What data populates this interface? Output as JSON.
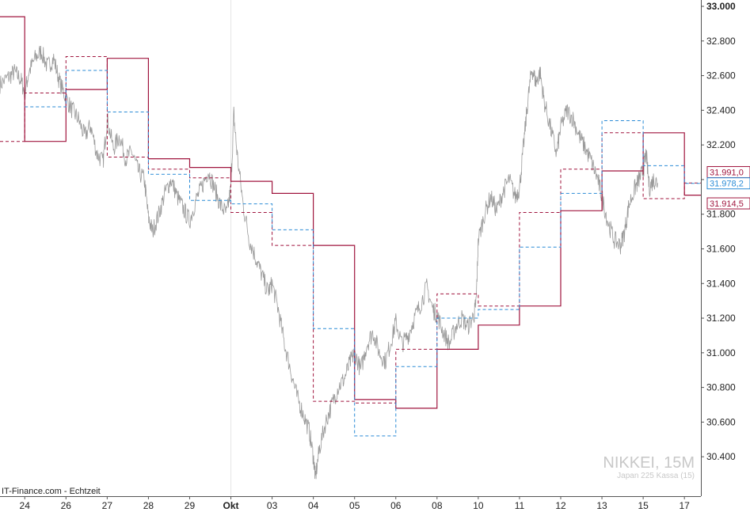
{
  "source_label": "IT-Finance.com - Echtzeit",
  "watermark": {
    "symbol": "NIKKEI, 15M",
    "subtitle": "Japan 225 Kassa (15)"
  },
  "colors": {
    "price_line": "#9a9a9a",
    "weekly_level": "#a0153e",
    "daily_high": "#a0153e",
    "daily_low": "#2a8bd6",
    "grid": "#e6e6e6"
  },
  "chart_data": {
    "type": "line",
    "title": "",
    "ylim": [
      30250,
      33000
    ],
    "y_ticks": [
      "30.400",
      "30.600",
      "30.800",
      "31.000",
      "31.200",
      "31.400",
      "31.600",
      "31.800",
      "32.000",
      "32.200",
      "32.400",
      "32.600",
      "32.800",
      "33.000"
    ],
    "y_tick_values": [
      30400,
      30600,
      30800,
      31000,
      31200,
      31400,
      31600,
      31800,
      32000,
      32200,
      32400,
      32600,
      32800,
      33000
    ],
    "x_ticks": [
      "24",
      "26",
      "27",
      "28",
      "29",
      "Okt",
      "03",
      "04",
      "05",
      "06",
      "08",
      "10",
      "11",
      "12",
      "13",
      "15",
      "17"
    ],
    "x_tick_index": [
      0.05,
      1.05,
      2.05,
      3.05,
      4.05,
      5.05,
      6.05,
      7.05,
      8.05,
      9.05,
      10.05,
      11.05,
      12.05,
      13.05,
      14.05,
      15.05,
      16.05
    ],
    "x_extent": [
      -0.55,
      16.45
    ],
    "grid": "vertical at Okt",
    "price_markers": [
      {
        "label": "31.991,0",
        "value": 31991.0,
        "color": "#a0153e"
      },
      {
        "label": "31.978,2",
        "value": 31978.2,
        "color": "#2a8bd6"
      },
      {
        "label": "31.914,5",
        "value": 31914.5,
        "color": "#a0153e"
      }
    ],
    "price_series": [
      [
        -0.55,
        32550
      ],
      [
        -0.35,
        32590
      ],
      [
        -0.2,
        32620
      ],
      [
        -0.05,
        32580
      ],
      [
        0.05,
        32500
      ],
      [
        0.15,
        32620
      ],
      [
        0.3,
        32700
      ],
      [
        0.45,
        32740
      ],
      [
        0.6,
        32650
      ],
      [
        0.75,
        32700
      ],
      [
        0.9,
        32560
      ],
      [
        1.05,
        32470
      ],
      [
        1.2,
        32400
      ],
      [
        1.35,
        32350
      ],
      [
        1.5,
        32250
      ],
      [
        1.65,
        32310
      ],
      [
        1.8,
        32150
      ],
      [
        1.95,
        32100
      ],
      [
        2.05,
        32350
      ],
      [
        2.2,
        32180
      ],
      [
        2.35,
        32250
      ],
      [
        2.5,
        32120
      ],
      [
        2.65,
        32160
      ],
      [
        2.8,
        32050
      ],
      [
        2.95,
        32000
      ],
      [
        3.05,
        31780
      ],
      [
        3.15,
        31700
      ],
      [
        3.3,
        31800
      ],
      [
        3.45,
        31920
      ],
      [
        3.6,
        32000
      ],
      [
        3.75,
        31900
      ],
      [
        3.9,
        31830
      ],
      [
        4.05,
        31760
      ],
      [
        4.2,
        31880
      ],
      [
        4.35,
        31960
      ],
      [
        4.5,
        32050
      ],
      [
        4.65,
        31950
      ],
      [
        4.8,
        31850
      ],
      [
        4.95,
        31800
      ],
      [
        5.05,
        31950
      ],
      [
        5.12,
        32380
      ],
      [
        5.2,
        32150
      ],
      [
        5.35,
        31850
      ],
      [
        5.5,
        31650
      ],
      [
        5.65,
        31550
      ],
      [
        5.8,
        31450
      ],
      [
        5.95,
        31350
      ],
      [
        6.05,
        31400
      ],
      [
        6.2,
        31250
      ],
      [
        6.35,
        31050
      ],
      [
        6.5,
        30900
      ],
      [
        6.65,
        30750
      ],
      [
        6.8,
        30650
      ],
      [
        6.95,
        30550
      ],
      [
        7.05,
        30400
      ],
      [
        7.1,
        30280
      ],
      [
        7.2,
        30450
      ],
      [
        7.35,
        30600
      ],
      [
        7.5,
        30700
      ],
      [
        7.65,
        30800
      ],
      [
        7.8,
        30850
      ],
      [
        7.95,
        30950
      ],
      [
        8.05,
        31000
      ],
      [
        8.2,
        30900
      ],
      [
        8.35,
        31050
      ],
      [
        8.5,
        31120
      ],
      [
        8.65,
        31000
      ],
      [
        8.8,
        30950
      ],
      [
        8.95,
        31080
      ],
      [
        9.05,
        31180
      ],
      [
        9.2,
        31050
      ],
      [
        9.35,
        31100
      ],
      [
        9.5,
        31200
      ],
      [
        9.65,
        31280
      ],
      [
        9.8,
        31380
      ],
      [
        9.95,
        31250
      ],
      [
        10.05,
        31220
      ],
      [
        10.2,
        31120
      ],
      [
        10.35,
        31050
      ],
      [
        10.5,
        31150
      ],
      [
        10.65,
        31200
      ],
      [
        10.8,
        31150
      ],
      [
        10.95,
        31220
      ],
      [
        11.0,
        31300
      ],
      [
        11.05,
        31650
      ],
      [
        11.2,
        31800
      ],
      [
        11.35,
        31900
      ],
      [
        11.5,
        31820
      ],
      [
        11.65,
        31930
      ],
      [
        11.8,
        32000
      ],
      [
        11.95,
        31900
      ],
      [
        12.05,
        31950
      ],
      [
        12.15,
        32200
      ],
      [
        12.25,
        32450
      ],
      [
        12.35,
        32640
      ],
      [
        12.45,
        32560
      ],
      [
        12.55,
        32620
      ],
      [
        12.65,
        32450
      ],
      [
        12.8,
        32300
      ],
      [
        12.95,
        32150
      ],
      [
        13.05,
        32300
      ],
      [
        13.2,
        32400
      ],
      [
        13.35,
        32350
      ],
      [
        13.5,
        32250
      ],
      [
        13.65,
        32180
      ],
      [
        13.8,
        32100
      ],
      [
        13.95,
        32000
      ],
      [
        14.05,
        31900
      ],
      [
        14.2,
        31750
      ],
      [
        14.35,
        31650
      ],
      [
        14.5,
        31620
      ],
      [
        14.6,
        31700
      ],
      [
        14.7,
        31850
      ],
      [
        14.85,
        31950
      ],
      [
        14.95,
        32000
      ],
      [
        15.05,
        32050
      ],
      [
        15.12,
        32150
      ],
      [
        15.2,
        31950
      ],
      [
        15.3,
        32000
      ],
      [
        15.4,
        31980
      ]
    ],
    "series": [
      {
        "name": "",
        "kind": "weekly",
        "style": "solid",
        "steps": [
          [
            -0.55,
            32940
          ],
          [
            0.05,
            32940
          ],
          [
            0.05,
            32220
          ],
          [
            1.05,
            32220
          ],
          [
            1.05,
            32520
          ],
          [
            2.05,
            32520
          ],
          [
            2.05,
            32700
          ],
          [
            3.05,
            32700
          ],
          [
            3.05,
            32120
          ],
          [
            4.05,
            32120
          ],
          [
            4.05,
            32070
          ],
          [
            5.05,
            32070
          ],
          [
            5.05,
            31990
          ],
          [
            6.05,
            31990
          ],
          [
            6.05,
            31920
          ],
          [
            7.05,
            31920
          ],
          [
            7.05,
            31620
          ],
          [
            8.05,
            31620
          ],
          [
            8.05,
            30730
          ],
          [
            9.05,
            30730
          ],
          [
            9.05,
            30680
          ],
          [
            10.05,
            30680
          ],
          [
            10.05,
            31020
          ],
          [
            11.05,
            31020
          ],
          [
            11.05,
            31160
          ],
          [
            12.05,
            31160
          ],
          [
            12.05,
            31270
          ],
          [
            13.05,
            31270
          ],
          [
            13.05,
            31820
          ],
          [
            14.05,
            31820
          ],
          [
            14.05,
            32050
          ],
          [
            15.05,
            32050
          ],
          [
            15.05,
            32270
          ],
          [
            16.05,
            32270
          ],
          [
            16.05,
            31910
          ],
          [
            16.45,
            31910
          ]
        ]
      },
      {
        "name": "",
        "kind": "daily_high",
        "style": "dashed",
        "steps": [
          [
            -0.55,
            32220
          ],
          [
            0.05,
            32220
          ],
          [
            0.05,
            32500
          ],
          [
            1.05,
            32500
          ],
          [
            1.05,
            32710
          ],
          [
            2.05,
            32710
          ],
          [
            2.05,
            32130
          ],
          [
            3.05,
            32130
          ],
          [
            3.05,
            32060
          ],
          [
            4.05,
            32060
          ],
          [
            4.05,
            32010
          ],
          [
            5.05,
            32010
          ],
          [
            5.05,
            31810
          ],
          [
            6.05,
            31810
          ],
          [
            6.05,
            31620
          ],
          [
            7.05,
            31620
          ],
          [
            7.05,
            30720
          ],
          [
            8.05,
            30720
          ],
          [
            8.05,
            30710
          ],
          [
            9.05,
            30710
          ],
          [
            9.05,
            31020
          ],
          [
            10.05,
            31020
          ],
          [
            10.05,
            31340
          ],
          [
            11.05,
            31340
          ],
          [
            11.05,
            31270
          ],
          [
            12.05,
            31270
          ],
          [
            12.05,
            31810
          ],
          [
            13.05,
            31810
          ],
          [
            13.05,
            32060
          ],
          [
            14.05,
            32060
          ],
          [
            14.05,
            32270
          ],
          [
            15.05,
            32270
          ],
          [
            15.05,
            31890
          ],
          [
            16.05,
            31890
          ],
          [
            16.05,
            31980
          ],
          [
            16.45,
            31980
          ]
        ]
      },
      {
        "name": "",
        "kind": "daily_low",
        "style": "dashed",
        "steps": [
          [
            0.05,
            32420
          ],
          [
            1.05,
            32420
          ],
          [
            1.05,
            32630
          ],
          [
            2.05,
            32630
          ],
          [
            2.05,
            32390
          ],
          [
            3.05,
            32390
          ],
          [
            3.05,
            32030
          ],
          [
            4.05,
            32030
          ],
          [
            4.05,
            31880
          ],
          [
            5.05,
            31880
          ],
          [
            5.05,
            31860
          ],
          [
            6.05,
            31860
          ],
          [
            6.05,
            31710
          ],
          [
            7.05,
            31710
          ],
          [
            7.05,
            31140
          ],
          [
            8.05,
            31140
          ],
          [
            8.05,
            30520
          ],
          [
            9.05,
            30520
          ],
          [
            9.05,
            30920
          ],
          [
            10.05,
            30920
          ],
          [
            10.05,
            31200
          ],
          [
            11.05,
            31200
          ],
          [
            11.05,
            31250
          ],
          [
            12.05,
            31250
          ],
          [
            12.05,
            31610
          ],
          [
            13.05,
            31610
          ],
          [
            13.05,
            31920
          ],
          [
            14.05,
            31920
          ],
          [
            14.05,
            32340
          ],
          [
            15.05,
            32340
          ],
          [
            15.05,
            32080
          ],
          [
            16.05,
            32080
          ],
          [
            16.05,
            31978
          ],
          [
            16.45,
            31978
          ]
        ]
      }
    ]
  }
}
